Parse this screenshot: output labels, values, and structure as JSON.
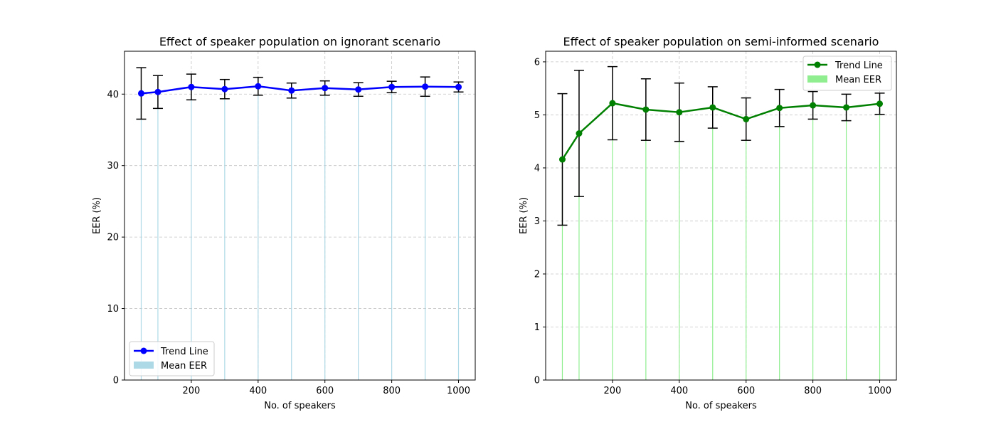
{
  "chart_data": [
    {
      "type": "line",
      "title": "Effect of speaker population on ignorant scenario",
      "xlabel": "No. of speakers",
      "ylabel": "EER (%)",
      "xlim": [
        0,
        1050
      ],
      "ylim": [
        0,
        46
      ],
      "xticks": [
        200,
        400,
        600,
        800,
        1000
      ],
      "yticks": [
        0,
        10,
        20,
        30,
        40
      ],
      "grid": true,
      "legend_position": "lower-left",
      "series": [
        {
          "name": "Trend Line",
          "kind": "line-markers-errorbars",
          "color": "#0000ff",
          "x": [
            50,
            100,
            200,
            300,
            400,
            500,
            600,
            700,
            800,
            900,
            1000
          ],
          "y": [
            40.1,
            40.3,
            41.0,
            40.7,
            41.1,
            40.5,
            40.85,
            40.65,
            41.0,
            41.05,
            41.0
          ],
          "err": [
            3.6,
            2.3,
            1.8,
            1.35,
            1.25,
            1.05,
            1.0,
            0.95,
            0.8,
            1.35,
            0.7
          ]
        },
        {
          "name": "Mean EER",
          "kind": "bar",
          "color": "#add8e6",
          "x": [
            50,
            100,
            200,
            300,
            400,
            500,
            600,
            700,
            800,
            900,
            1000
          ],
          "y": [
            40.1,
            40.3,
            41.0,
            40.7,
            41.1,
            40.5,
            40.85,
            40.65,
            41.0,
            41.05,
            41.0
          ]
        }
      ]
    },
    {
      "type": "line",
      "title": "Effect of speaker population on semi-informed scenario",
      "xlabel": "No. of speakers",
      "ylabel": "EER (%)",
      "xlim": [
        0,
        1050
      ],
      "ylim": [
        0,
        6.2
      ],
      "xticks": [
        200,
        400,
        600,
        800,
        1000
      ],
      "yticks": [
        0,
        1,
        2,
        3,
        4,
        5,
        6
      ],
      "grid": true,
      "legend_position": "upper-right",
      "series": [
        {
          "name": "Trend Line",
          "kind": "line-markers-errorbars",
          "color": "#008000",
          "x": [
            50,
            100,
            200,
            300,
            400,
            500,
            600,
            700,
            800,
            900,
            1000
          ],
          "y": [
            4.16,
            4.65,
            5.22,
            5.1,
            5.05,
            5.14,
            4.92,
            5.13,
            5.18,
            5.14,
            5.21
          ],
          "err": [
            1.24,
            1.19,
            0.69,
            0.58,
            0.55,
            0.39,
            0.4,
            0.35,
            0.26,
            0.25,
            0.2
          ]
        },
        {
          "name": "Mean EER",
          "kind": "bar",
          "color": "#90ee90",
          "x": [
            50,
            100,
            200,
            300,
            400,
            500,
            600,
            700,
            800,
            900,
            1000
          ],
          "y": [
            4.16,
            4.65,
            5.22,
            5.1,
            5.05,
            5.14,
            4.92,
            5.13,
            5.18,
            5.14,
            5.21
          ]
        }
      ]
    }
  ]
}
